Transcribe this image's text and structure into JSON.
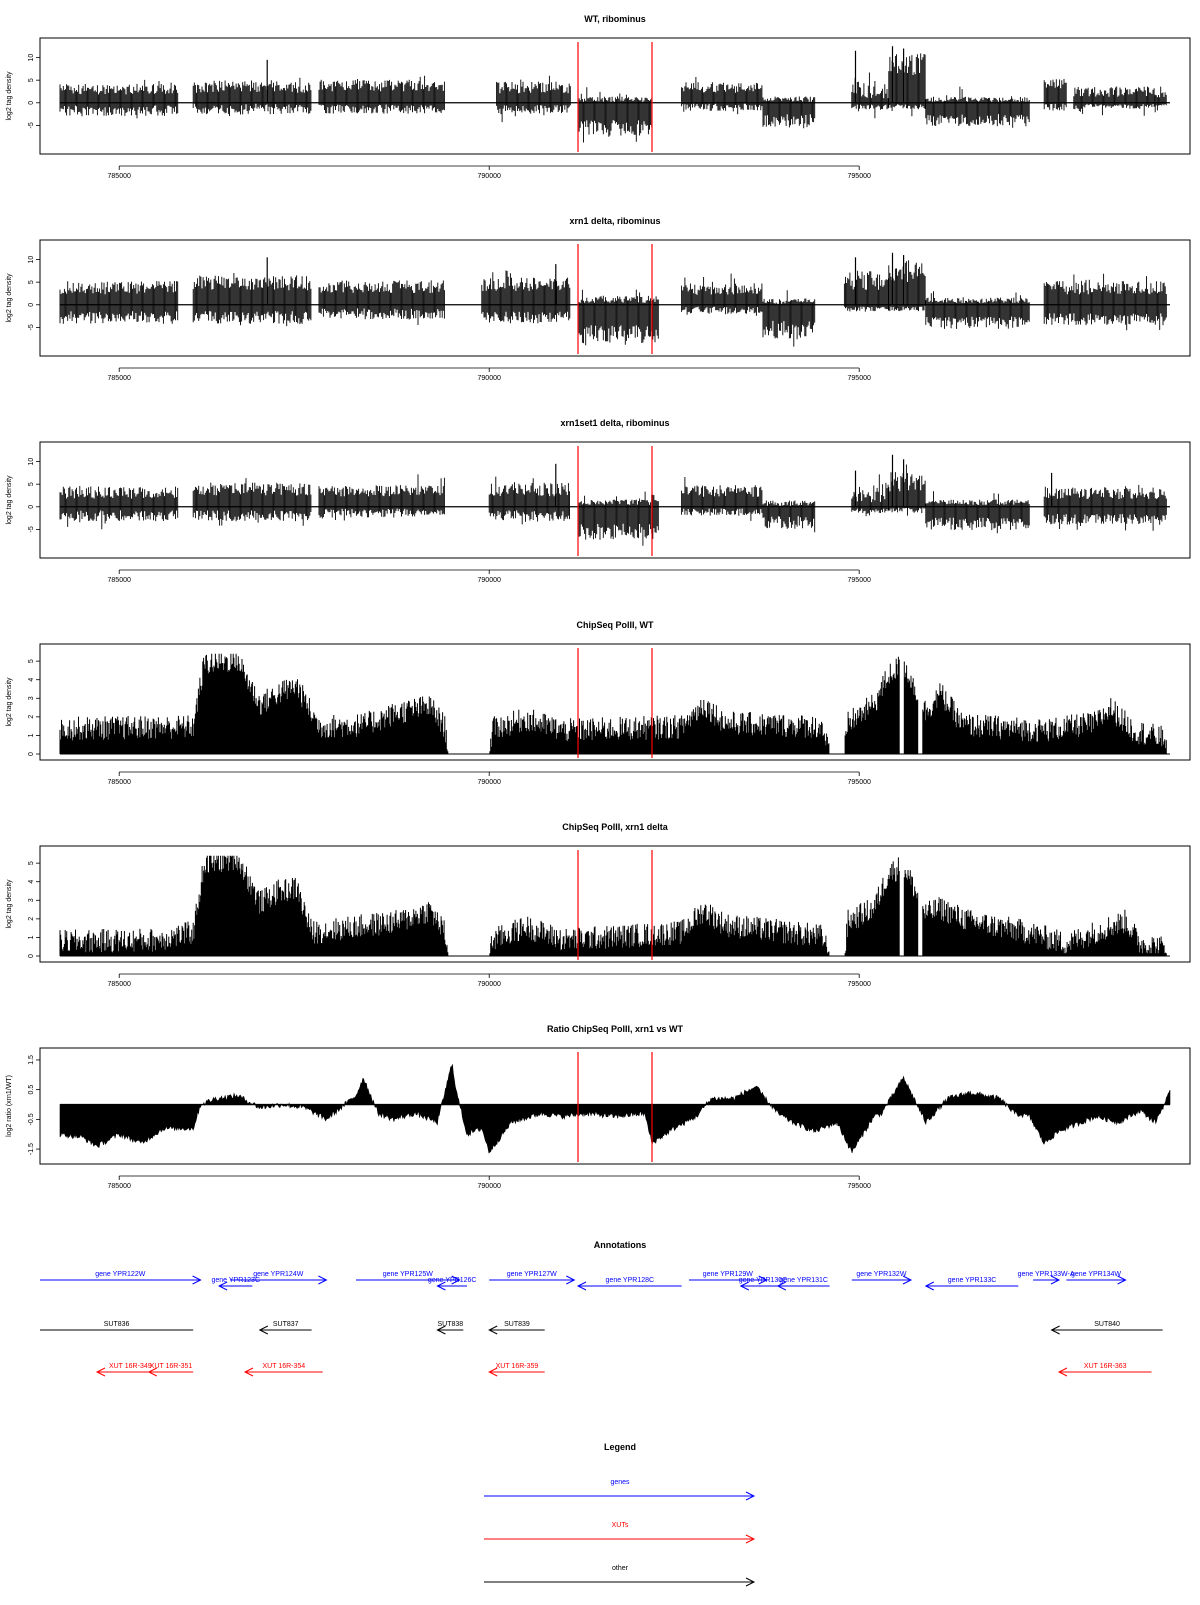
{
  "chart_data": [
    {
      "type": "bar",
      "title": "WT, ribominus",
      "ylabel": "log2 tag density",
      "ylim": [
        -10,
        13
      ],
      "yticks": [
        -5,
        0,
        5,
        10
      ],
      "xlim": [
        784200,
        799200
      ],
      "xticks": [
        785000,
        790000,
        795000
      ],
      "segments": [
        {
          "x": [
            784200,
            785800
          ],
          "pos": 3.0,
          "neg": 1.8,
          "pv": 1.2,
          "nv": 1.2
        },
        {
          "x": [
            786000,
            787600
          ],
          "pos": 3.6,
          "neg": 1.4,
          "pv": 1.4,
          "nv": 1.2,
          "spikes": [
            [
              787000,
              9.5
            ]
          ]
        },
        {
          "x": [
            787700,
            789400
          ],
          "pos": 3.8,
          "neg": 1.4,
          "pv": 1.3,
          "nv": 1.0
        },
        {
          "x": [
            790100,
            791100
          ],
          "pos": 3.4,
          "neg": 1.5,
          "pv": 1.3,
          "nv": 1.0
        },
        {
          "x": [
            791200,
            792200
          ],
          "pos": 0.8,
          "neg": 5.5,
          "pv": 0.6,
          "nv": 1.8
        },
        {
          "x": [
            792600,
            793700
          ],
          "pos": 3.4,
          "neg": 1.0,
          "pv": 1.2,
          "nv": 0.8
        },
        {
          "x": [
            793700,
            794400
          ],
          "pos": 0.8,
          "neg": 4.0,
          "pv": 0.6,
          "nv": 1.5
        },
        {
          "x": [
            794900,
            795400
          ],
          "pos": 3.0,
          "neg": 1.0,
          "pv": 2.0,
          "nv": 0.6,
          "spikes": [
            [
              794950,
              11.5
            ]
          ]
        },
        {
          "x": [
            795400,
            795900
          ],
          "pos": 8.5,
          "neg": 0.8,
          "pv": 2.5,
          "nv": 0.6,
          "spikes": [
            [
              795450,
              12.5
            ],
            [
              795600,
              12.0
            ]
          ]
        },
        {
          "x": [
            795900,
            797300
          ],
          "pos": 0.8,
          "neg": 3.8,
          "pv": 0.6,
          "nv": 1.4
        },
        {
          "x": [
            797500,
            797800
          ],
          "pos": 4.0,
          "neg": 1.0,
          "pv": 1.5,
          "nv": 0.8
        },
        {
          "x": [
            797900,
            799000
          ],
          "pos": 2.5,
          "neg": 0.8,
          "pv": 1.2,
          "nv": 0.6
        },
        {
          "x": [
            799000,
            799150
          ],
          "pos": 1.8,
          "neg": 0.5,
          "pv": 0.6,
          "nv": 0.3
        }
      ]
    },
    {
      "type": "bar",
      "title": "xrn1 delta, ribominus",
      "ylabel": "log2 tag density",
      "ylim": [
        -10,
        13
      ],
      "yticks": [
        -5,
        0,
        5,
        10
      ],
      "xlim": [
        784200,
        799200
      ],
      "xticks": [
        785000,
        790000,
        795000
      ],
      "segments": [
        {
          "x": [
            784200,
            785800
          ],
          "pos": 3.8,
          "neg": 2.8,
          "pv": 1.5,
          "nv": 1.4
        },
        {
          "x": [
            786000,
            787600
          ],
          "pos": 4.8,
          "neg": 2.8,
          "pv": 1.6,
          "nv": 1.4,
          "spikes": [
            [
              787000,
              10.5
            ]
          ]
        },
        {
          "x": [
            787700,
            789400
          ],
          "pos": 4.0,
          "neg": 2.0,
          "pv": 1.4,
          "nv": 1.2
        },
        {
          "x": [
            789900,
            791100
          ],
          "pos": 4.5,
          "neg": 2.8,
          "pv": 1.5,
          "nv": 1.3,
          "spikes": [
            [
              790900,
              9.0
            ]
          ]
        },
        {
          "x": [
            791200,
            792300
          ],
          "pos": 1.2,
          "neg": 6.5,
          "pv": 0.8,
          "nv": 2.0
        },
        {
          "x": [
            792600,
            793700
          ],
          "pos": 3.5,
          "neg": 1.2,
          "pv": 1.3,
          "nv": 0.8
        },
        {
          "x": [
            793700,
            794400
          ],
          "pos": 0.8,
          "neg": 5.5,
          "pv": 0.6,
          "nv": 2.0
        },
        {
          "x": [
            794800,
            795400
          ],
          "pos": 5.5,
          "neg": 1.0,
          "pv": 2.2,
          "nv": 0.6,
          "spikes": [
            [
              794950,
              10.5
            ]
          ]
        },
        {
          "x": [
            795400,
            795900
          ],
          "pos": 7.5,
          "neg": 0.8,
          "pv": 2.5,
          "nv": 0.6,
          "spikes": [
            [
              795450,
              11.5
            ],
            [
              795600,
              11.0
            ]
          ]
        },
        {
          "x": [
            795900,
            797300
          ],
          "pos": 1.0,
          "neg": 4.0,
          "pv": 0.6,
          "nv": 1.4
        },
        {
          "x": [
            797500,
            799150
          ],
          "pos": 3.8,
          "neg": 3.2,
          "pv": 1.5,
          "nv": 1.3
        }
      ]
    },
    {
      "type": "bar",
      "title": "xrn1set1 delta, ribominus",
      "ylabel": "log2 tag density",
      "ylim": [
        -10,
        13
      ],
      "yticks": [
        -5,
        0,
        5,
        10
      ],
      "xlim": [
        784200,
        799200
      ],
      "xticks": [
        785000,
        790000,
        795000
      ],
      "segments": [
        {
          "x": [
            784200,
            785800
          ],
          "pos": 3.2,
          "neg": 2.0,
          "pv": 1.4,
          "nv": 1.2
        },
        {
          "x": [
            786000,
            787600
          ],
          "pos": 4.0,
          "neg": 2.0,
          "pv": 1.5,
          "nv": 1.2
        },
        {
          "x": [
            787700,
            789400
          ],
          "pos": 3.5,
          "neg": 1.4,
          "pv": 1.3,
          "nv": 1.0
        },
        {
          "x": [
            790000,
            791100
          ],
          "pos": 3.8,
          "neg": 2.0,
          "pv": 1.5,
          "nv": 1.2,
          "spikes": [
            [
              790900,
              9.5
            ]
          ]
        },
        {
          "x": [
            791200,
            792300
          ],
          "pos": 1.0,
          "neg": 5.5,
          "pv": 0.6,
          "nv": 1.8
        },
        {
          "x": [
            792600,
            793700
          ],
          "pos": 3.5,
          "neg": 1.2,
          "pv": 1.3,
          "nv": 0.8
        },
        {
          "x": [
            793700,
            794400
          ],
          "pos": 0.8,
          "neg": 3.5,
          "pv": 0.6,
          "nv": 1.4
        },
        {
          "x": [
            794900,
            795400
          ],
          "pos": 3.0,
          "neg": 1.0,
          "pv": 2.0,
          "nv": 0.6,
          "spikes": [
            [
              794950,
              8.0
            ]
          ]
        },
        {
          "x": [
            795400,
            795900
          ],
          "pos": 5.5,
          "neg": 0.8,
          "pv": 2.2,
          "nv": 0.6,
          "spikes": [
            [
              795450,
              11.5
            ],
            [
              795600,
              10.5
            ]
          ]
        },
        {
          "x": [
            795900,
            797300
          ],
          "pos": 1.0,
          "neg": 3.8,
          "pv": 0.6,
          "nv": 1.4
        },
        {
          "x": [
            797500,
            799150
          ],
          "pos": 3.0,
          "neg": 2.8,
          "pv": 1.3,
          "nv": 1.2,
          "spikes": [
            [
              797600,
              7.5
            ]
          ]
        }
      ]
    },
    {
      "type": "bar",
      "title": "ChipSeq PolII, WT",
      "ylabel": "log2 tag density",
      "ylim": [
        0,
        5.6
      ],
      "yticks": [
        0,
        1,
        2,
        3,
        4,
        5
      ],
      "xlim": [
        784200,
        799200
      ],
      "xticks": [
        785000,
        790000,
        795000
      ],
      "keyframes": [
        [
          784200,
          1.3
        ],
        [
          786000,
          1.4
        ],
        [
          786150,
          4.8
        ],
        [
          786600,
          5.0
        ],
        [
          786900,
          2.6
        ],
        [
          787150,
          3.2
        ],
        [
          787400,
          3.6
        ],
        [
          787700,
          1.4
        ],
        [
          788300,
          1.5
        ],
        [
          788800,
          2.2
        ],
        [
          789200,
          2.5
        ],
        [
          789400,
          1.4
        ],
        [
          789450,
          0.0
        ],
        [
          790000,
          0.0
        ],
        [
          790050,
          1.3
        ],
        [
          790500,
          1.8
        ],
        [
          791000,
          1.2
        ],
        [
          792600,
          1.4
        ],
        [
          792900,
          2.6
        ],
        [
          793200,
          1.6
        ],
        [
          794500,
          1.4
        ],
        [
          794600,
          0.0
        ],
        [
          794800,
          0.0
        ],
        [
          794850,
          1.6
        ],
        [
          795200,
          2.6
        ],
        [
          795400,
          4.2
        ],
        [
          795600,
          4.8
        ],
        [
          795900,
          2.2
        ],
        [
          796100,
          3.2
        ],
        [
          796400,
          1.5
        ],
        [
          797500,
          1.2
        ],
        [
          798200,
          1.6
        ],
        [
          798400,
          2.4
        ],
        [
          798700,
          1.2
        ],
        [
          799100,
          0.8
        ]
      ],
      "gaps": [
        [
          795550,
          795600
        ],
        [
          795800,
          795850
        ]
      ]
    },
    {
      "type": "bar",
      "title": "ChipSeq PolII, xrn1 delta",
      "ylabel": "log2 tag density",
      "ylim": [
        0,
        5.6
      ],
      "yticks": [
        0,
        1,
        2,
        3,
        4,
        5
      ],
      "xlim": [
        784200,
        799200
      ],
      "xticks": [
        785000,
        790000,
        795000
      ],
      "keyframes": [
        [
          784200,
          0.7
        ],
        [
          785500,
          0.8
        ],
        [
          786000,
          1.2
        ],
        [
          786150,
          4.9
        ],
        [
          786600,
          5.2
        ],
        [
          786900,
          2.8
        ],
        [
          787150,
          3.4
        ],
        [
          787400,
          3.6
        ],
        [
          787600,
          1.2
        ],
        [
          788800,
          1.8
        ],
        [
          789200,
          2.4
        ],
        [
          789400,
          1.2
        ],
        [
          789450,
          0.0
        ],
        [
          790000,
          0.0
        ],
        [
          790050,
          0.8
        ],
        [
          790500,
          1.5
        ],
        [
          791000,
          0.8
        ],
        [
          792600,
          1.2
        ],
        [
          792900,
          2.4
        ],
        [
          793200,
          1.6
        ],
        [
          794500,
          1.0
        ],
        [
          794600,
          0.0
        ],
        [
          794800,
          0.0
        ],
        [
          794850,
          1.8
        ],
        [
          795200,
          2.5
        ],
        [
          795400,
          4.4
        ],
        [
          795600,
          4.8
        ],
        [
          795900,
          2.2
        ],
        [
          796100,
          2.5
        ],
        [
          796500,
          1.8
        ],
        [
          797300,
          1.2
        ],
        [
          797800,
          0.6
        ],
        [
          798300,
          1.4
        ],
        [
          798600,
          1.8
        ],
        [
          798800,
          0.6
        ],
        [
          799100,
          0.4
        ]
      ],
      "gaps": [
        [
          795550,
          795600
        ],
        [
          795800,
          795850
        ]
      ]
    },
    {
      "type": "area",
      "title": "Ratio ChipSeq PolII, xrn1 vs WT",
      "ylabel": "log2 ratio (xrn1/WT)",
      "ylim": [
        -1.8,
        1.7
      ],
      "yticks": [
        -1.5,
        -0.5,
        0.5,
        1.5
      ],
      "baseline": 0,
      "xlim": [
        784200,
        799200
      ],
      "xticks": [
        785000,
        790000,
        795000
      ],
      "series": [
        {
          "x": [
            784200,
            784500,
            784700,
            785000,
            785300,
            785600,
            786000,
            786100,
            786300,
            786600,
            786900,
            787200,
            787500,
            787800,
            788200,
            788300,
            788500,
            788700,
            789000,
            789300,
            789500,
            789550,
            789700,
            789900,
            790000,
            790300,
            790700,
            791000,
            791300,
            791700,
            792100,
            792200,
            792500,
            792800,
            793000,
            793300,
            793600,
            793900,
            794100,
            794400,
            794700,
            794900,
            795200,
            795300,
            795600,
            795900,
            796200,
            796500,
            796900,
            797100,
            797300,
            797500,
            797700,
            797900,
            798200,
            798500,
            798800,
            799000,
            799200
          ],
          "y": [
            -1.0,
            -1.1,
            -1.4,
            -1.0,
            -1.3,
            -0.8,
            -0.8,
            0.0,
            0.2,
            0.3,
            -0.1,
            0.0,
            -0.1,
            -0.5,
            0.3,
            0.9,
            -0.3,
            -0.5,
            -0.3,
            -0.6,
            1.4,
            0.5,
            -1.0,
            -0.8,
            -1.6,
            -0.6,
            -0.3,
            -0.4,
            -0.3,
            -0.4,
            -0.3,
            -1.3,
            -0.8,
            -0.4,
            0.2,
            0.2,
            0.6,
            -0.3,
            -0.6,
            -0.9,
            -0.6,
            -1.6,
            -0.4,
            -0.3,
            0.9,
            -0.6,
            0.2,
            0.4,
            0.2,
            -0.3,
            -0.4,
            -1.3,
            -0.9,
            -0.7,
            -0.4,
            -0.6,
            -0.2,
            -0.6,
            0.4
          ]
        }
      ]
    }
  ],
  "red_markers": [
    791200,
    792200
  ],
  "annotations": {
    "title": "Annotations",
    "xlim": [
      784200,
      799200
    ],
    "genes": [
      {
        "label": "gene YPR122W",
        "x1": 783800,
        "x2": 786100,
        "dir": "right",
        "row": 0
      },
      {
        "label": "gene YPR123C",
        "x1": 786350,
        "x2": 786800,
        "dir": "left",
        "row": 1
      },
      {
        "label": "gene YPR124W",
        "x1": 786500,
        "x2": 787800,
        "dir": "right",
        "row": 0
      },
      {
        "label": "gene YPR125W",
        "x1": 788200,
        "x2": 789600,
        "dir": "right",
        "row": 0
      },
      {
        "label": "gene YPR126C",
        "x1": 789300,
        "x2": 789700,
        "dir": "left",
        "row": 1
      },
      {
        "label": "gene YPR127W",
        "x1": 790000,
        "x2": 791150,
        "dir": "right",
        "row": 0
      },
      {
        "label": "gene YPR128C",
        "x1": 791200,
        "x2": 792600,
        "dir": "left",
        "row": 1
      },
      {
        "label": "gene YPR129W",
        "x1": 792700,
        "x2": 793750,
        "dir": "right",
        "row": 0
      },
      {
        "label": "gene YPR130C",
        "x1": 793400,
        "x2": 794000,
        "dir": "left",
        "row": 1
      },
      {
        "label": "gene YPR131C",
        "x1": 793900,
        "x2": 794600,
        "dir": "left",
        "row": 1
      },
      {
        "label": "gene YPR132W",
        "x1": 794900,
        "x2": 795700,
        "dir": "right",
        "row": 0
      },
      {
        "label": "gene YPR133C",
        "x1": 795900,
        "x2": 797150,
        "dir": "left",
        "row": 1
      },
      {
        "label": "gene YPR133W-A",
        "x1": 797350,
        "x2": 797700,
        "dir": "right",
        "row": 0
      },
      {
        "label": "gene YPR134W",
        "x1": 797800,
        "x2": 798600,
        "dir": "right",
        "row": 0
      }
    ],
    "other": [
      {
        "label": "SUT836",
        "x1": 783800,
        "x2": 786000,
        "dir": "none"
      },
      {
        "label": "SUT837",
        "x1": 786900,
        "x2": 787600,
        "dir": "left"
      },
      {
        "label": "SUT838",
        "x1": 789300,
        "x2": 789650,
        "dir": "left"
      },
      {
        "label": "SUT839",
        "x1": 790000,
        "x2": 790750,
        "dir": "left"
      },
      {
        "label": "SUT840",
        "x1": 797600,
        "x2": 799100,
        "dir": "left"
      }
    ],
    "xuts": [
      {
        "label": "XUT 16R-349",
        "x1": 784700,
        "x2": 785600,
        "dir": "left"
      },
      {
        "label": "XUT 16R-351",
        "x1": 785400,
        "x2": 786000,
        "dir": "left"
      },
      {
        "label": "XUT 16R-354",
        "x1": 786700,
        "x2": 787750,
        "dir": "left"
      },
      {
        "label": "XUT 16R-359",
        "x1": 790000,
        "x2": 790750,
        "dir": "left"
      },
      {
        "label": "XUT 16R-363",
        "x1": 797700,
        "x2": 798950,
        "dir": "left"
      }
    ]
  },
  "legend": {
    "title": "Legend",
    "items": [
      {
        "label": "genes",
        "color": "#0000ff"
      },
      {
        "label": "XUTs",
        "color": "#ff0000"
      },
      {
        "label": "other",
        "color": "#000000"
      }
    ]
  },
  "colors": {
    "gene": "#0000ff",
    "xut": "#ff0000",
    "other": "#000000",
    "marker": "#ff0000"
  }
}
